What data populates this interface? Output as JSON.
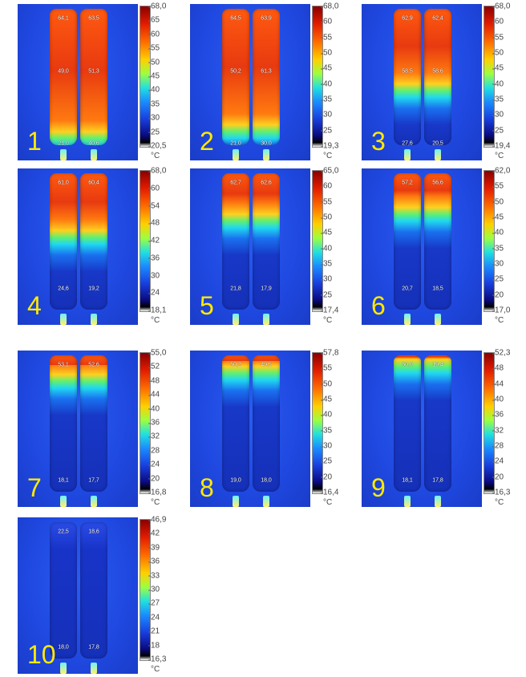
{
  "panels": [
    {
      "label": "1",
      "scale": [
        "68,0",
        "65",
        "60",
        "55",
        "50",
        "45",
        "40",
        "35",
        "30",
        "25",
        "20,5"
      ],
      "unit": "°C",
      "spots": [
        "64,1",
        "63,5",
        "49,0",
        "51,3",
        "21,0",
        "40,6"
      ]
    },
    {
      "label": "2",
      "scale": [
        "68,0",
        "60",
        "55",
        "50",
        "45",
        "40",
        "35",
        "30",
        "25",
        "19,3"
      ],
      "unit": "°C",
      "spots": [
        "64,5",
        "63,9",
        "50,2",
        "61,3",
        "21,0",
        "30,0"
      ]
    },
    {
      "label": "3",
      "scale": [
        "68,0",
        "60",
        "55",
        "50",
        "45",
        "40",
        "35",
        "30",
        "25",
        "19,4"
      ],
      "unit": "°C",
      "spots": [
        "62,9",
        "62,4",
        "58,5",
        "58,6",
        "27,6",
        "20,5"
      ]
    },
    {
      "label": "4",
      "scale": [
        "68,0",
        "60",
        "54",
        "48",
        "42",
        "36",
        "30",
        "24",
        "18,1"
      ],
      "unit": "°C",
      "spots": [
        "61,0",
        "60,4",
        "24,6",
        "19,2"
      ]
    },
    {
      "label": "5",
      "scale": [
        "65,0",
        "60",
        "55",
        "50",
        "45",
        "40",
        "35",
        "30",
        "25",
        "17,4"
      ],
      "unit": "°C",
      "spots": [
        "62,7",
        "62,6",
        "21,8",
        "17,9"
      ]
    },
    {
      "label": "6",
      "scale": [
        "62,0",
        "55",
        "50",
        "45",
        "40",
        "35",
        "30",
        "25",
        "20",
        "17,0"
      ],
      "unit": "°C",
      "spots": [
        "57,2",
        "56,6",
        "20,7",
        "18,5"
      ]
    },
    {
      "label": "7",
      "scale": [
        "55,0",
        "52",
        "48",
        "44",
        "40",
        "36",
        "32",
        "28",
        "24",
        "20",
        "16,8"
      ],
      "unit": "°C",
      "spots": [
        "53,1",
        "52,6",
        "18,1",
        "17,7"
      ]
    },
    {
      "label": "8",
      "scale": [
        "57,8",
        "55",
        "50",
        "45",
        "40",
        "35",
        "30",
        "25",
        "20",
        "16,4"
      ],
      "unit": "°C",
      "spots": [
        "50,2",
        "49,5",
        "19,0",
        "18,0"
      ]
    },
    {
      "label": "9",
      "scale": [
        "52,3",
        "48",
        "44",
        "40",
        "36",
        "32",
        "28",
        "24",
        "20",
        "16,3"
      ],
      "unit": "°C",
      "spots": [
        "50,0",
        "19,4",
        "18,1",
        "17,8"
      ]
    },
    {
      "label": "10",
      "scale": [
        "46,9",
        "42",
        "39",
        "36",
        "33",
        "30",
        "27",
        "24",
        "21",
        "18",
        "16,3"
      ],
      "unit": "°C",
      "spots": [
        "22,5",
        "18,6",
        "18,0",
        "17,8"
      ]
    }
  ]
}
